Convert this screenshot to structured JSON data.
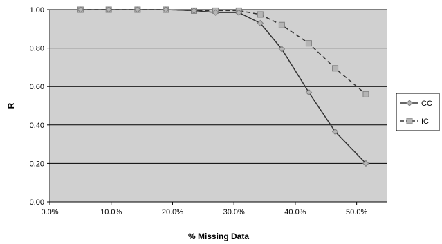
{
  "chart_data": {
    "type": "line",
    "xlabel": "% Missing Data",
    "ylabel": "R",
    "xlim": [
      0,
      0.55
    ],
    "ylim": [
      0,
      1
    ],
    "x_ticks": [
      0,
      0.1,
      0.2,
      0.3,
      0.4,
      0.5
    ],
    "x_tick_labels": [
      "0.0%",
      "10.0%",
      "20.0%",
      "30.0%",
      "40.0%",
      "50.0%"
    ],
    "y_ticks": [
      0,
      0.2,
      0.4,
      0.6,
      0.8,
      1.0
    ],
    "y_tick_labels": [
      "0.00",
      "0.20",
      "0.40",
      "0.60",
      "0.80",
      "1.00"
    ],
    "grid": "horizontal",
    "legend_position": "right",
    "plot_background": "#d0d0d0",
    "series": [
      {
        "name": "CC",
        "color": "#333333",
        "line_style": "solid",
        "marker": "diamond",
        "marker_color": "#b5b5b5",
        "x": [
          0.05,
          0.096,
          0.143,
          0.189,
          0.235,
          0.27,
          0.308,
          0.343,
          0.378,
          0.422,
          0.465,
          0.515
        ],
        "y": [
          1.0,
          1.0,
          1.0,
          1.0,
          0.995,
          0.985,
          0.985,
          0.93,
          0.795,
          0.57,
          0.365,
          0.2
        ]
      },
      {
        "name": "IC",
        "color": "#333333",
        "line_style": "dashed",
        "marker": "square",
        "marker_color": "#b5b5b5",
        "x": [
          0.05,
          0.096,
          0.143,
          0.189,
          0.235,
          0.27,
          0.308,
          0.343,
          0.378,
          0.422,
          0.465,
          0.515
        ],
        "y": [
          1.0,
          1.0,
          1.0,
          1.0,
          0.995,
          0.995,
          0.995,
          0.975,
          0.92,
          0.825,
          0.695,
          0.56
        ]
      }
    ]
  }
}
